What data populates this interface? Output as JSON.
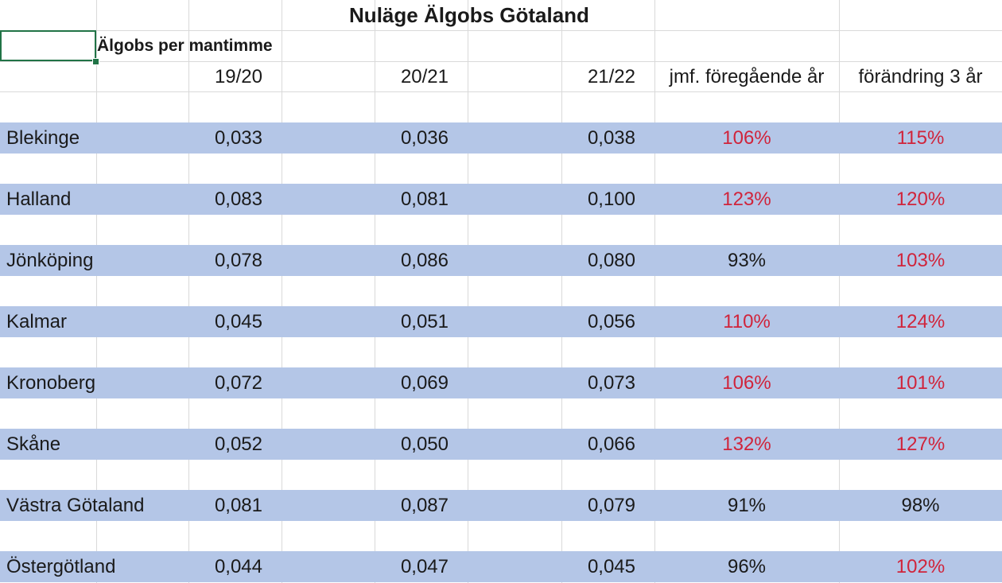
{
  "sheet": {
    "title": "Nuläge Älgobs Götaland",
    "subtitle": "Älgobs per mantimme",
    "headers": {
      "y1": "19/20",
      "y2": "20/21",
      "y3": "21/22",
      "cmp_prev": "jmf. föregående år",
      "change_3y": "förändring 3 år"
    },
    "colors": {
      "band": "#b4c6e7",
      "increase_text": "#d0243b",
      "gridline": "#d9d9d9",
      "selection": "#217346"
    },
    "rows": [
      {
        "region": "Blekinge",
        "y1": "0,033",
        "y2": "0,036",
        "y3": "0,038",
        "cmp_prev": "106%",
        "change_3y": "115%"
      },
      {
        "region": "Halland",
        "y1": "0,083",
        "y2": "0,081",
        "y3": "0,100",
        "cmp_prev": "123%",
        "change_3y": "120%"
      },
      {
        "region": "Jönköping",
        "y1": "0,078",
        "y2": "0,086",
        "y3": "0,080",
        "cmp_prev": "93%",
        "change_3y": "103%"
      },
      {
        "region": "Kalmar",
        "y1": "0,045",
        "y2": "0,051",
        "y3": "0,056",
        "cmp_prev": "110%",
        "change_3y": "124%"
      },
      {
        "region": "Kronoberg",
        "y1": "0,072",
        "y2": "0,069",
        "y3": "0,073",
        "cmp_prev": "106%",
        "change_3y": "101%"
      },
      {
        "region": "Skåne",
        "y1": "0,052",
        "y2": "0,050",
        "y3": "0,066",
        "cmp_prev": "132%",
        "change_3y": "127%"
      },
      {
        "region": "Västra Götaland",
        "y1": "0,081",
        "y2": "0,087",
        "y3": "0,079",
        "cmp_prev": "91%",
        "change_3y": "98%"
      },
      {
        "region": "Östergötland",
        "y1": "0,044",
        "y2": "0,047",
        "y3": "0,045",
        "cmp_prev": "96%",
        "change_3y": "102%"
      }
    ]
  }
}
